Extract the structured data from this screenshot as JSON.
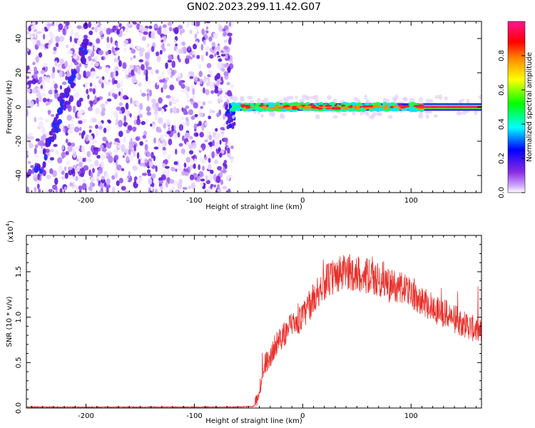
{
  "title": "GN02.2023.299.11.42.G07",
  "chart_data": [
    {
      "type": "heatmap",
      "xlabel": "Height of straight line (km)",
      "ylabel": "Frequency (Hz)",
      "xlim": [
        -255,
        165
      ],
      "ylim": [
        -50,
        50
      ],
      "xticks": [
        -200,
        -100,
        0,
        100
      ],
      "yticks": [
        -40,
        -20,
        0,
        20,
        40
      ],
      "colorbar": {
        "label": "Normalized spectral amplitude",
        "range": [
          0.0,
          1.0
        ],
        "ticks": [
          "0.0",
          "0.2",
          "0.4",
          "0.6",
          "0.8"
        ],
        "colors": [
          "#ffffff",
          "#d0a8ff",
          "#8a2be2",
          "#0000ff",
          "#00ffff",
          "#00ff00",
          "#ffff00",
          "#ff8c00",
          "#ff0000",
          "#ff1493"
        ]
      },
      "features": {
        "noise_region_x": [
          -255,
          -68
        ],
        "diagonal_streak": {
          "x": [
            -245,
            -195
          ],
          "y": [
            -40,
            45
          ]
        },
        "carrier_line": {
          "x_start": -68,
          "x_end": 165,
          "y": 0
        }
      }
    },
    {
      "type": "line",
      "xlabel": "Height of straight line (km)",
      "ylabel": "SNR (10 * v/v)",
      "y_multiplier": "(x10",
      "y_multiplier_exp": "4",
      "y_multiplier_close": ")",
      "xlim": [
        -255,
        165
      ],
      "ylim": [
        0.0,
        1.9
      ],
      "xticks": [
        -200,
        -100,
        0,
        100
      ],
      "yticks": [
        "0.0",
        "0.5",
        "1.0",
        "1.5"
      ],
      "series": [
        {
          "color": "#e8302a",
          "x": [
            -255,
            -150,
            -60,
            -45,
            -42,
            -38,
            -35,
            -30,
            -25,
            -20,
            -15,
            -10,
            -5,
            0,
            5,
            10,
            15,
            20,
            30,
            40,
            50,
            60,
            70,
            75,
            80,
            90,
            100,
            110,
            120,
            130,
            140,
            150,
            160,
            165
          ],
          "y": [
            0.01,
            0.01,
            0.01,
            0.02,
            0.1,
            0.3,
            0.5,
            0.55,
            0.7,
            0.75,
            0.85,
            0.9,
            0.95,
            1.0,
            1.1,
            1.2,
            1.3,
            1.38,
            1.45,
            1.5,
            1.48,
            1.45,
            1.4,
            1.42,
            1.35,
            1.32,
            1.28,
            1.2,
            1.1,
            1.05,
            0.98,
            0.92,
            0.86,
            0.83
          ]
        }
      ]
    }
  ]
}
